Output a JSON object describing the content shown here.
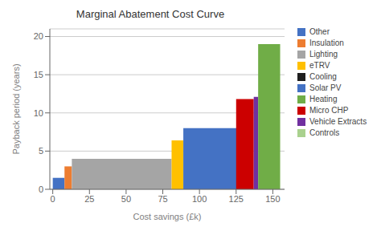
{
  "chart_data": {
    "type": "bar",
    "title": "Marginal Abatement Cost Curve",
    "xlabel": "Cost savings (£k)",
    "ylabel": "Payback period (years)",
    "xlim": [
      -2,
      158
    ],
    "ylim": [
      0,
      21
    ],
    "xticks": [
      0,
      25,
      50,
      75,
      100,
      125,
      150
    ],
    "yticks": [
      0,
      5,
      10,
      15,
      20
    ],
    "categories": [
      "Other",
      "Insulation",
      "Lighting",
      "eTRV",
      "Solar PV",
      "Micro CHP",
      "Vehicle Extracts",
      "Heating"
    ],
    "x": [
      0,
      8,
      13,
      81,
      89,
      125,
      137,
      140
    ],
    "widths": [
      8,
      5,
      68,
      8,
      38,
      12,
      3,
      15
    ],
    "values": [
      1.5,
      3.0,
      4.0,
      6.4,
      8.0,
      11.8,
      12.1,
      19.0
    ],
    "colors": [
      "#4472C4",
      "#ED7D31",
      "#A5A5A5",
      "#FFC000",
      "#4472C4",
      "#CC0000",
      "#7030A0",
      "#70AD47"
    ],
    "legend_entries": [
      {
        "name": "Other",
        "color": "#4472C4"
      },
      {
        "name": "Insulation",
        "color": "#ED7D31"
      },
      {
        "name": "Lighting",
        "color": "#A5A5A5"
      },
      {
        "name": "eTRV",
        "color": "#FFC000"
      },
      {
        "name": "Cooling",
        "color": "#1F1F1F"
      },
      {
        "name": "Solar PV",
        "color": "#4472C4"
      },
      {
        "name": "Heating",
        "color": "#70AD47"
      },
      {
        "name": "Micro CHP",
        "color": "#CC0000"
      },
      {
        "name": "Vehicle Extracts",
        "color": "#7030A0"
      },
      {
        "name": "Controls",
        "color": "#A9D18E"
      }
    ],
    "grid": true,
    "legend": "right"
  }
}
